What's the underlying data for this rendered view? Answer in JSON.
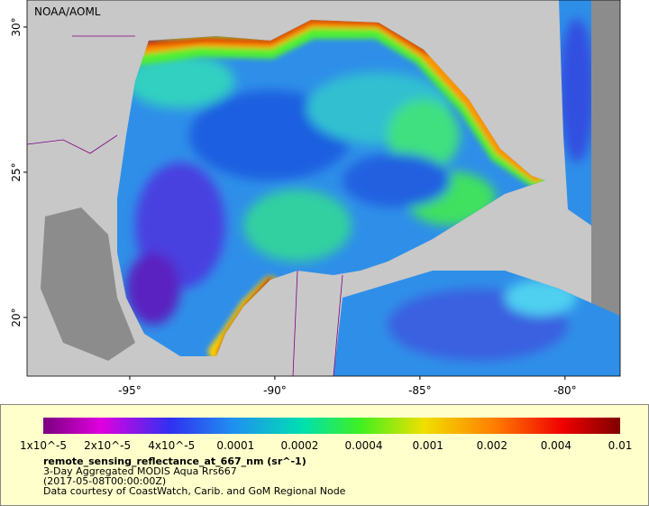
{
  "map": {
    "credit": "NOAA/AOML",
    "xlim": [
      -98.54,
      -78.1
    ],
    "ylim": [
      17.98,
      30.93
    ],
    "lon_ticks": [
      {
        "value": -95,
        "label": "-95°"
      },
      {
        "value": -90,
        "label": "-90°"
      },
      {
        "value": -85,
        "label": "-85°"
      },
      {
        "value": -80,
        "label": "-80°"
      }
    ],
    "lat_ticks": [
      {
        "value": 20,
        "label": "20°"
      },
      {
        "value": 25,
        "label": "25°"
      },
      {
        "value": 30,
        "label": "30°"
      }
    ]
  },
  "colorbar": {
    "labels": [
      "1x10^-5",
      "2x10^-5",
      "4x10^-5",
      "0.0001",
      "0.0002",
      "0.0004",
      "0.001",
      "0.002",
      "0.004",
      "0.01"
    ],
    "variable": "remote_sensing_reflectance_at_667_nm (sr^-1)",
    "description": "3-Day Aggregated MODIS Aqua Rrs667",
    "time": "(2017-05-08T00:00:00Z)",
    "source": "Data courtesy of CoastWatch, Carib. and GoM Regional Node"
  }
}
